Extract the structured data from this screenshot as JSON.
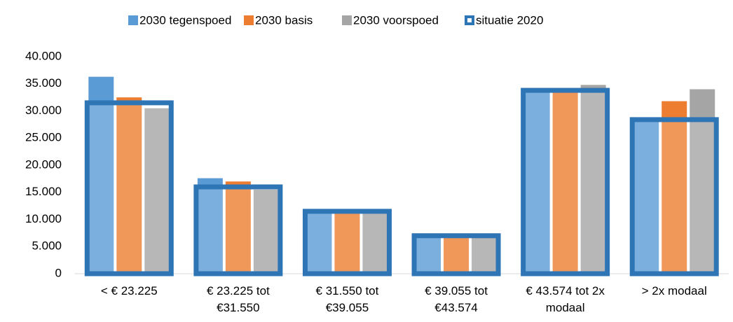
{
  "chart_data": {
    "type": "bar",
    "categories": [
      "< € 23.225",
      "€ 23.225 tot €31.550",
      "€ 31.550 tot €39.055",
      "€ 39.055 tot €43.574",
      "€ 43.574 tot 2x modaal",
      "> 2x modaal"
    ],
    "series": [
      {
        "name": "2030 tegenspoed",
        "color": "#5b9bd5",
        "values": [
          36300,
          17600,
          11200,
          6800,
          33500,
          28200
        ]
      },
      {
        "name": "2030 basis",
        "color": "#ed7d31",
        "values": [
          32500,
          17000,
          11200,
          6800,
          33500,
          31800
        ]
      },
      {
        "name": "2030 voorspoed",
        "color": "#a5a5a5",
        "values": [
          30500,
          15500,
          11200,
          7400,
          34800,
          34000
        ]
      },
      {
        "name": "situatie 2020",
        "color": "#2e75b6",
        "values": [
          31500,
          16000,
          11500,
          7000,
          33800,
          28400
        ],
        "style": "outline"
      }
    ],
    "ylim": [
      0,
      40000
    ],
    "yticks": [
      0,
      {
        "value": 5000,
        "label": "5.000"
      },
      {
        "value": 10000,
        "label": "10.000"
      },
      {
        "value": 15000,
        "label": "15.000"
      },
      {
        "value": 20000,
        "label": "20.000"
      },
      {
        "value": 25000,
        "label": "25.000"
      },
      {
        "value": 30000,
        "label": "30.000"
      },
      {
        "value": 35000,
        "label": "35.000"
      },
      {
        "value": 40000,
        "label": "40.000"
      }
    ],
    "grid": false,
    "legend": "top"
  }
}
